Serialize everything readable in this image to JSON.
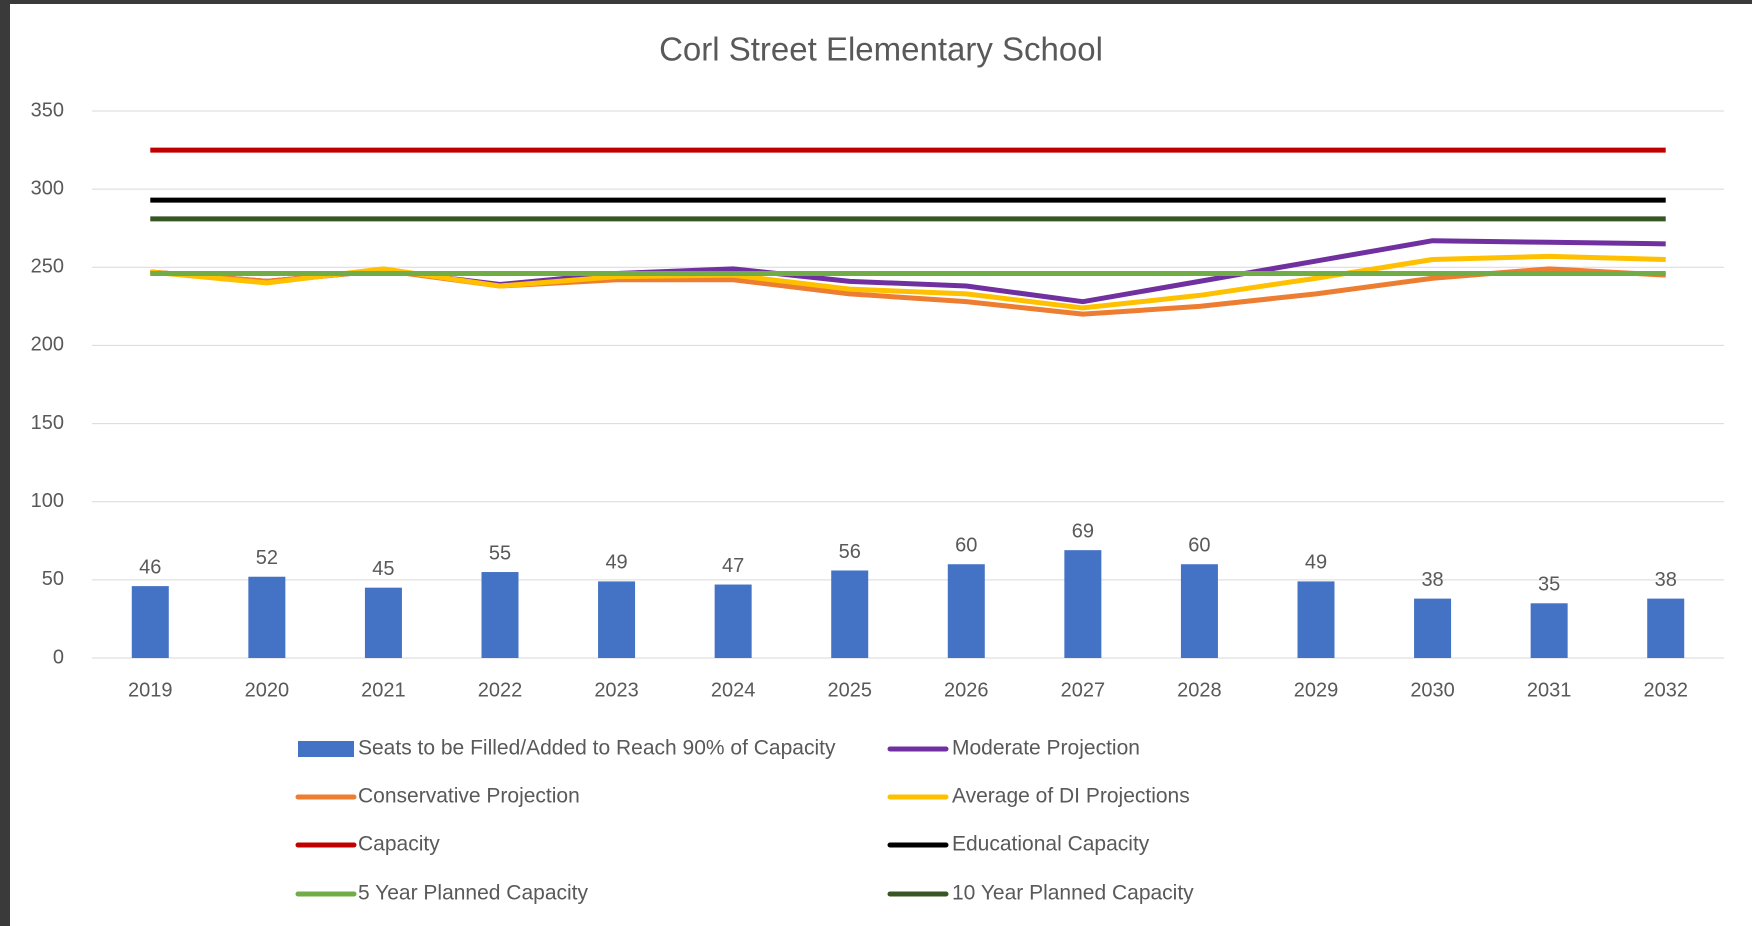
{
  "chart_data": {
    "type": "combo",
    "title": "Corl Street Elementary School",
    "categories": [
      "2019",
      "2020",
      "2021",
      "2022",
      "2023",
      "2024",
      "2025",
      "2026",
      "2027",
      "2028",
      "2029",
      "2030",
      "2031",
      "2032"
    ],
    "ylim": [
      0,
      350
    ],
    "yticks": [
      0,
      50,
      100,
      150,
      200,
      250,
      300,
      350
    ],
    "grid": true,
    "legend": "bottom",
    "series": [
      {
        "name": "Seats to be Filled/Added to Reach 90% of Capacity",
        "type": "bar",
        "color": "#4472c4",
        "data_labels": true,
        "values": [
          46,
          52,
          45,
          55,
          49,
          47,
          56,
          60,
          69,
          60,
          49,
          38,
          35,
          38
        ]
      },
      {
        "name": "Moderate Projection",
        "type": "line",
        "color": "#7030a0",
        "values": [
          247,
          241,
          248,
          239,
          246,
          249,
          241,
          238,
          228,
          241,
          254,
          267,
          266,
          265
        ]
      },
      {
        "name": "Conservative Projection",
        "type": "line",
        "color": "#ed7d31",
        "values": [
          247,
          241,
          248,
          238,
          242,
          242,
          233,
          228,
          220,
          225,
          233,
          243,
          249,
          245
        ]
      },
      {
        "name": "Average of DI Projections",
        "type": "line",
        "color": "#ffc000",
        "values": [
          247,
          240,
          249,
          238,
          244,
          245,
          236,
          233,
          224,
          232,
          243,
          255,
          257,
          255
        ]
      },
      {
        "name": "Capacity",
        "type": "line",
        "color": "#c00000",
        "values": [
          325,
          325,
          325,
          325,
          325,
          325,
          325,
          325,
          325,
          325,
          325,
          325,
          325,
          325
        ]
      },
      {
        "name": "Educational Capacity",
        "type": "line",
        "color": "#000000",
        "values": [
          293,
          293,
          293,
          293,
          293,
          293,
          293,
          293,
          293,
          293,
          293,
          293,
          293,
          293
        ]
      },
      {
        "name": "5 Year Planned Capacity",
        "type": "line",
        "color": "#70ad47",
        "values": [
          246,
          246,
          246,
          246,
          246,
          246,
          246,
          246,
          246,
          246,
          246,
          246,
          246,
          246
        ]
      },
      {
        "name": "10 Year Planned Capacity",
        "type": "line",
        "color": "#375623",
        "values": [
          281,
          281,
          281,
          281,
          281,
          281,
          281,
          281,
          281,
          281,
          281,
          281,
          281,
          281
        ]
      }
    ]
  }
}
